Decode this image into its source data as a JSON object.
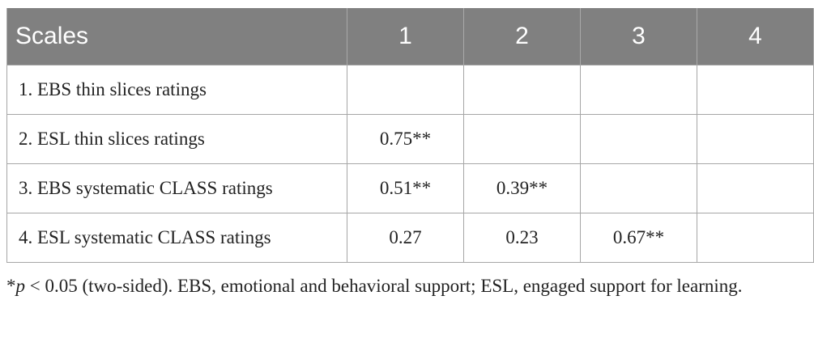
{
  "table": {
    "headers": [
      "Scales",
      "1",
      "2",
      "3",
      "4"
    ],
    "rows": [
      {
        "label": "1.  EBS thin slices ratings",
        "cells": [
          "",
          "",
          "",
          ""
        ]
      },
      {
        "label": "2.  ESL thin slices ratings",
        "cells": [
          "0.75**",
          "",
          "",
          ""
        ]
      },
      {
        "label": "3.  EBS systematic CLASS ratings",
        "cells": [
          "0.51**",
          "0.39**",
          "",
          ""
        ]
      },
      {
        "label": "4.  ESL systematic CLASS ratings",
        "cells": [
          "0.27",
          "0.23",
          "0.67**",
          ""
        ]
      }
    ]
  },
  "footnote": {
    "star": "*",
    "p": "p",
    "text": " < 0.05 (two-sided). EBS, emotional and behavioral support; ESL, engaged support for learning."
  }
}
